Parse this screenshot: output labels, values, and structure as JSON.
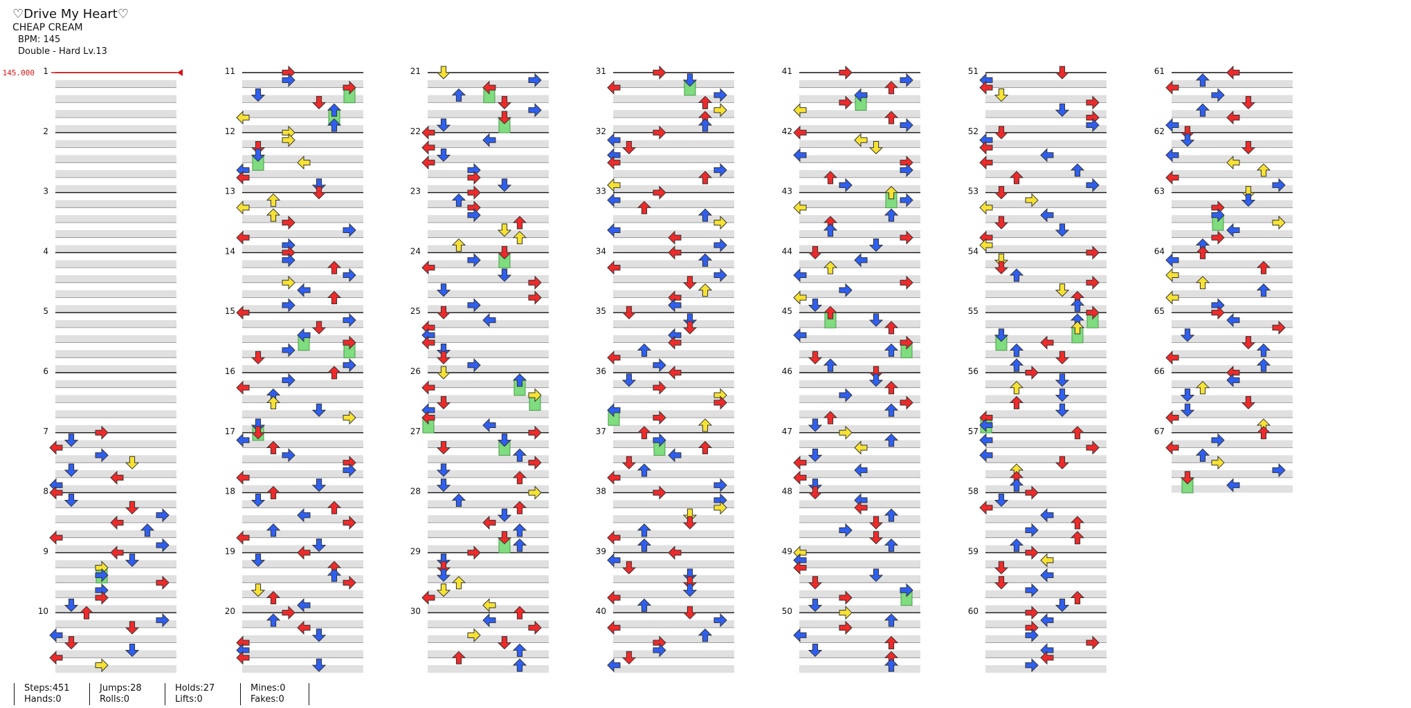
{
  "song": {
    "title": "♡Drive My Heart♡",
    "artist": "CHEAP CREAM",
    "bpm_line": "BPM: 145",
    "difficulty_line": "Double - Hard Lv.13",
    "bpm_marker": "145.000"
  },
  "measure_labels": [
    "1",
    "2",
    "3",
    "4",
    "5",
    "6",
    "7",
    "8",
    "9",
    "10",
    "11",
    "12",
    "13",
    "14",
    "15",
    "16",
    "17",
    "18",
    "19",
    "20",
    "21",
    "22",
    "23",
    "24",
    "25",
    "26",
    "27",
    "28",
    "29",
    "30",
    "31",
    "32",
    "33",
    "34",
    "35",
    "36",
    "37",
    "38",
    "39",
    "40",
    "41",
    "42",
    "43",
    "44",
    "45",
    "46",
    "47",
    "48",
    "49",
    "50",
    "51",
    "52",
    "53",
    "54",
    "55",
    "56",
    "57",
    "58",
    "59",
    "60",
    "61",
    "62",
    "63",
    "64",
    "65",
    "66",
    "67"
  ],
  "stats": {
    "steps": "Steps:451",
    "hands": "Hands:0",
    "jumps": "Jumps:28",
    "rolls": "Rolls:0",
    "holds": "Holds:27",
    "lifts": "Lifts:0",
    "mines": "Mines:0",
    "fakes": "Fakes:0"
  },
  "colors": {
    "red_note": "#ee2a2a",
    "blue_note": "#2f5ff0",
    "yellow_note": "#f7e233",
    "hold": "#7fdc7f",
    "bpm_line": "#dd1111",
    "shade": "#e0e0e0"
  }
}
